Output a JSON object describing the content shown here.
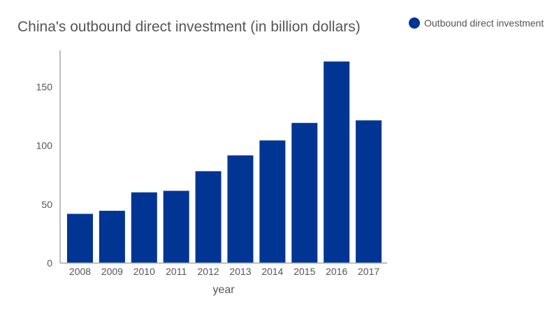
{
  "chart_data": {
    "type": "bar",
    "title": "China's outbound direct investment (in billion dollars)",
    "xlabel": "year",
    "ylabel": "",
    "categories": [
      "2008",
      "2009",
      "2010",
      "2011",
      "2012",
      "2013",
      "2014",
      "2015",
      "2016",
      "2017"
    ],
    "series": [
      {
        "name": "Outbound direct investment",
        "values": [
          41.9,
          44.5,
          60.2,
          61.5,
          78.2,
          91.7,
          104.4,
          119.3,
          171.6,
          121.5
        ]
      }
    ],
    "ylim": [
      0,
      180
    ],
    "yticks": [
      0,
      50,
      100,
      150
    ],
    "grid": false,
    "legend": "top-right",
    "colors": {
      "bar": "#003594",
      "axis": "#aaaaaa",
      "text": "#555555"
    }
  }
}
